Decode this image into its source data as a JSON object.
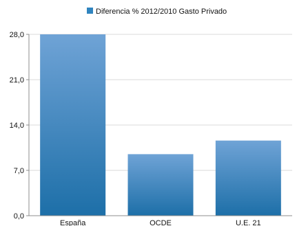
{
  "chart_data": {
    "type": "bar",
    "categories": [
      "España",
      "OCDE",
      "U.E. 21"
    ],
    "series": [
      {
        "name": "Diferencia % 2012/2010 Gasto Privado",
        "values": [
          28.0,
          9.5,
          11.6
        ]
      }
    ],
    "yticks": [
      "0,0",
      "7,0",
      "14,0",
      "21,0",
      "28,0"
    ],
    "ylim": [
      0,
      28
    ],
    "grid": true,
    "legend_position": "top",
    "colors": {
      "bar_top": "#6FA3D6",
      "bar_bottom": "#1D6FA8",
      "legend_swatch": "#2F84BF",
      "grid": "#D9D9D9",
      "axis": "#8C8C8C"
    }
  }
}
